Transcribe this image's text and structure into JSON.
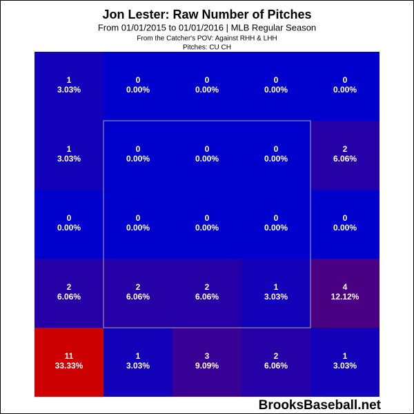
{
  "chart_data": {
    "type": "heatmap",
    "title": "Jon Lester: Raw Number of Pitches",
    "subtitle": "From 01/01/2015 to 01/01/2016 | MLB Regular Season",
    "notes": [
      "From the Catcher's POV:  Against RHH & LHH",
      "Pitches:  CU  CH"
    ],
    "source": "BrooksBaseball.net",
    "color_scale": [
      "#0000cc",
      "#cc0000"
    ],
    "values": [
      [
        1,
        0,
        0,
        0,
        0
      ],
      [
        1,
        0,
        0,
        0,
        2
      ],
      [
        0,
        0,
        0,
        0,
        0
      ],
      [
        2,
        2,
        2,
        1,
        4
      ],
      [
        11,
        1,
        3,
        2,
        1
      ]
    ],
    "percents": [
      [
        3.03,
        0,
        0,
        0,
        0
      ],
      [
        3.03,
        0,
        0,
        0,
        6.06
      ],
      [
        0,
        0,
        0,
        0,
        0
      ],
      [
        6.06,
        6.06,
        6.06,
        3.03,
        12.12
      ],
      [
        33.33,
        3.03,
        9.09,
        6.06,
        3.03
      ]
    ],
    "percent_labels": [
      [
        "3.03%",
        "0.00%",
        "0.00%",
        "0.00%",
        "0.00%"
      ],
      [
        "3.03%",
        "0.00%",
        "0.00%",
        "0.00%",
        "6.06%"
      ],
      [
        "0.00%",
        "0.00%",
        "0.00%",
        "0.00%",
        "0.00%"
      ],
      [
        "6.06%",
        "6.06%",
        "6.06%",
        "3.03%",
        "12.12%"
      ],
      [
        "33.33%",
        "3.03%",
        "9.09%",
        "6.06%",
        "3.03%"
      ]
    ]
  }
}
